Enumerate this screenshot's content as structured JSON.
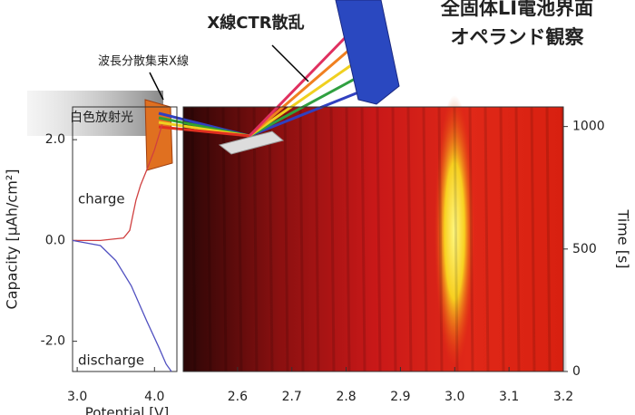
{
  "illustration": {
    "title": [
      "全固体LI電池界面",
      "オペランド観察"
    ],
    "ctr_label": "X線CTR散乱",
    "focus_label": "波長分散集束X線",
    "source_label": "白色放射光"
  },
  "chart_data": [
    {
      "type": "line",
      "y_label": "Capacity [μAh/cm²]",
      "x_label": "Potential [V]",
      "xlim": [
        2.94,
        4.29
      ],
      "ylim": [
        -2.6,
        2.65
      ],
      "xticks": [
        {
          "value": 3,
          "label": "3.0"
        },
        {
          "value": 4,
          "label": "4.0"
        }
      ],
      "yticks": [
        {
          "value": 2,
          "label": "2.0"
        },
        {
          "value": 0,
          "label": "0.0"
        },
        {
          "value": -2,
          "label": "-2.0"
        }
      ],
      "series": [
        {
          "name": "charge",
          "color": "#d04040",
          "x": [
            2.94,
            3.3,
            3.6,
            3.68,
            3.72,
            3.76,
            3.82,
            3.9,
            4.0,
            4.1
          ],
          "values": [
            0,
            0,
            0.05,
            0.2,
            0.5,
            0.8,
            1.1,
            1.4,
            1.8,
            2.3
          ]
        },
        {
          "name": "discharge",
          "color": "#5050c0",
          "x": [
            2.94,
            3.3,
            3.5,
            3.7,
            3.9,
            4.05,
            4.15,
            4.22
          ],
          "values": [
            0,
            -0.1,
            -0.4,
            -0.9,
            -1.6,
            -2.1,
            -2.45,
            -2.6
          ]
        }
      ]
    },
    {
      "type": "heatmap",
      "y_label": "Time [s]",
      "xlim": [
        2.5,
        3.2
      ],
      "ylim": [
        0,
        1080
      ],
      "xticks": [
        2.6,
        2.7,
        2.8,
        2.9,
        {
          "value": 3,
          "label": "3.0"
        },
        3.1,
        3.2
      ],
      "yticks": [
        0,
        500,
        1000
      ]
    }
  ]
}
